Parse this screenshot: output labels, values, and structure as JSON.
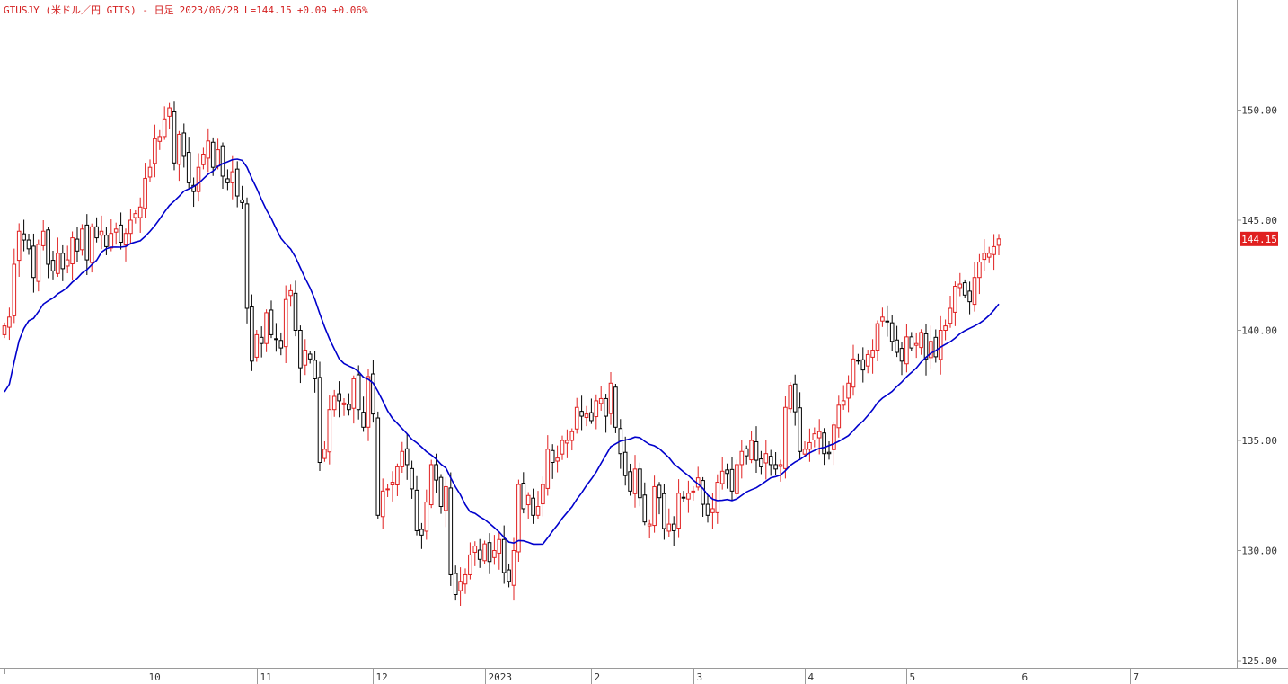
{
  "header": {
    "symbol": "GTUSJY (米ドル／円 GTIS) - 日足",
    "date": "2023/06/28",
    "last": "L=144.15",
    "change": "+0.09",
    "change_pct": "+0.06%"
  },
  "chart_data": {
    "type": "candlestick",
    "ylim": [
      125,
      155
    ],
    "y_ticks": [
      "125.00",
      "130.00",
      "135.00",
      "140.00",
      "145.00",
      "150.00"
    ],
    "y_tick_values": [
      125,
      130,
      135,
      140,
      145,
      150
    ],
    "x_tick_labels": [
      "10",
      "11",
      "12",
      "2023",
      "2",
      "3",
      "4",
      "5",
      "6",
      "7"
    ],
    "x_tick_index": [
      29,
      52,
      76,
      99,
      121,
      142,
      165,
      186,
      209,
      232
    ],
    "n_slots": 240,
    "last_price_label": "144.15",
    "last_price": 144.15,
    "colors": {
      "up": "#e02020",
      "down": "#000000",
      "ma": "#0000cc",
      "last_badge": "#e02020"
    },
    "closes": [
      140.2,
      140.6,
      143.0,
      144.5,
      144.1,
      143.7,
      142.4,
      143.9,
      144.5,
      143.0,
      142.7,
      143.5,
      142.8,
      143.2,
      144.2,
      143.6,
      144.6,
      143.2,
      144.7,
      144.2,
      144.5,
      143.8,
      144.4,
      144.6,
      144.0,
      144.4,
      145.0,
      145.3,
      145.6,
      146.9,
      147.4,
      148.7,
      148.8,
      149.6,
      150.1,
      147.6,
      148.9,
      147.9,
      146.7,
      146.3,
      147.4,
      148.0,
      148.6,
      147.4,
      148.2,
      147.0,
      146.7,
      147.2,
      146.1,
      145.8,
      141.0,
      138.6,
      139.8,
      139.4,
      140.8,
      139.8,
      139.6,
      139.2,
      141.4,
      141.8,
      140.0,
      138.3,
      139.1,
      138.7,
      137.8,
      134.0,
      134.6,
      136.4,
      137.0,
      136.8,
      136.7,
      136.4,
      137.8,
      136.4,
      135.6,
      137.9,
      136.2,
      131.6,
      132.7,
      132.8,
      133.1,
      133.8,
      134.5,
      133.9,
      132.8,
      130.9,
      130.7,
      132.2,
      133.9,
      133.2,
      132.0,
      132.9,
      128.9,
      128.0,
      128.6,
      128.9,
      129.8,
      130.2,
      129.6,
      130.3,
      129.5,
      130.0,
      130.5,
      129.0,
      128.6,
      130.0,
      133.0,
      131.9,
      132.5,
      131.6,
      132.0,
      133.0,
      134.6,
      134.0,
      134.2,
      135.0,
      135.0,
      135.4,
      136.5,
      136.1,
      136.2,
      135.9,
      136.8,
      136.9,
      136.1,
      137.6,
      135.6,
      134.4,
      133.4,
      132.7,
      133.7,
      132.4,
      131.3,
      131.2,
      132.9,
      132.4,
      131.0,
      131.2,
      130.9,
      132.6,
      132.4,
      132.6,
      132.7,
      133.3,
      132.1,
      131.6,
      131.9,
      133.1,
      133.6,
      133.5,
      132.7,
      133.9,
      134.5,
      134.3,
      135.0,
      134.1,
      133.8,
      134.4,
      133.9,
      133.7,
      133.9,
      136.5,
      137.5,
      136.3,
      134.5,
      134.6,
      134.9,
      135.3,
      135.4,
      134.4,
      134.4,
      135.7,
      136.6,
      136.8,
      137.6,
      138.7,
      138.6,
      138.2,
      138.9,
      139.1,
      140.3,
      140.6,
      140.4,
      139.5,
      139.0,
      138.6,
      139.7,
      139.2,
      139.4,
      139.9,
      138.7,
      139.5,
      138.8,
      140.0,
      140.2,
      141.0,
      142.0,
      142.1,
      141.6,
      141.3,
      142.4,
      143.1,
      143.5,
      143.5,
      143.8,
      144.15
    ]
  }
}
